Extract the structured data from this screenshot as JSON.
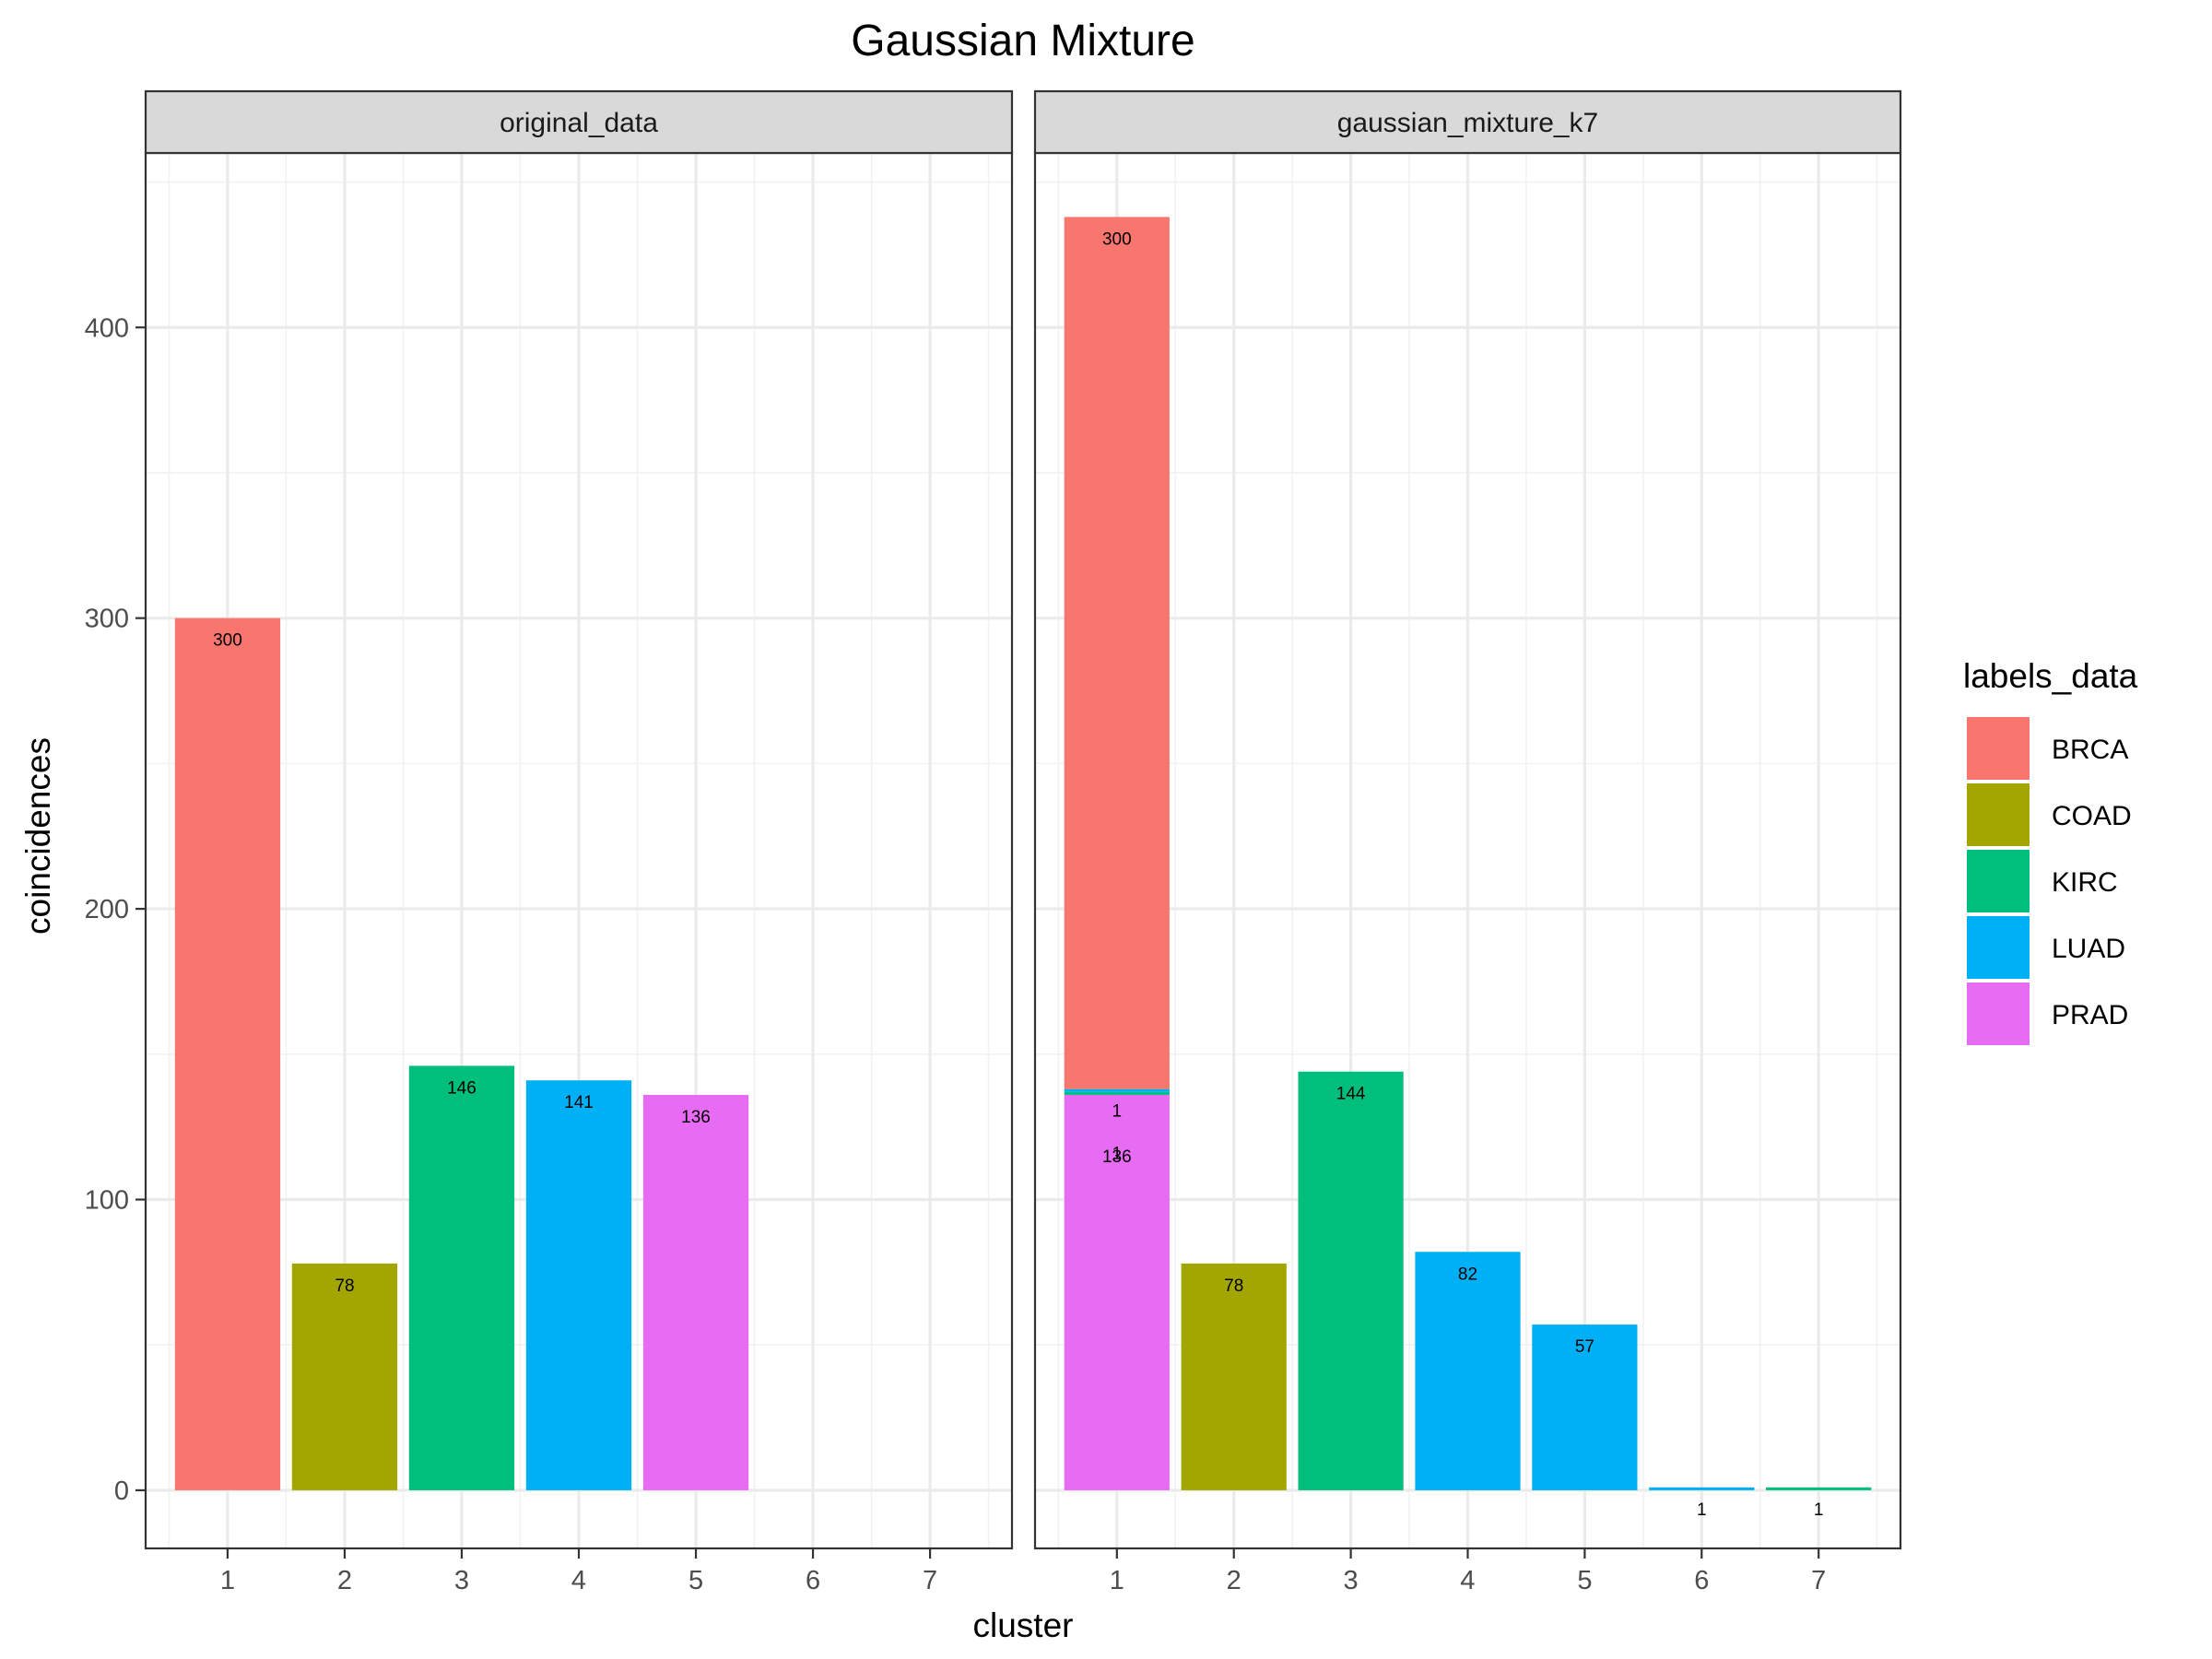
{
  "chart_data": {
    "type": "bar",
    "stacked": true,
    "title": "Gaussian Mixture",
    "xlabel": "cluster",
    "ylabel": "coincidences",
    "categories": [
      "1",
      "2",
      "3",
      "4",
      "5",
      "6",
      "7"
    ],
    "ylim": [
      -20,
      460
    ],
    "yticks": [
      0,
      100,
      200,
      300,
      400
    ],
    "grid": true,
    "legend": {
      "title": "labels_data",
      "position": "right",
      "items": [
        {
          "name": "BRCA",
          "color": "#F8766D"
        },
        {
          "name": "COAD",
          "color": "#A3A500"
        },
        {
          "name": "KIRC",
          "color": "#00BF7D"
        },
        {
          "name": "LUAD",
          "color": "#00B0F6"
        },
        {
          "name": "PRAD",
          "color": "#E76BF3"
        }
      ]
    },
    "panels": [
      {
        "name": "original_data",
        "segments": [
          {
            "cluster": "1",
            "label": "BRCA",
            "value": 300,
            "text": "300"
          },
          {
            "cluster": "2",
            "label": "COAD",
            "value": 78,
            "text": "78"
          },
          {
            "cluster": "3",
            "label": "KIRC",
            "value": 146,
            "text": "146"
          },
          {
            "cluster": "4",
            "label": "LUAD",
            "value": 141,
            "text": "141"
          },
          {
            "cluster": "5",
            "label": "PRAD",
            "value": 136,
            "text": "136"
          }
        ]
      },
      {
        "name": "gaussian_mixture_k7",
        "segments": [
          {
            "cluster": "1",
            "label": "PRAD",
            "value": 136,
            "text": "136"
          },
          {
            "cluster": "1",
            "label": "KIRC",
            "value": 1,
            "text": "1"
          },
          {
            "cluster": "1",
            "label": "LUAD",
            "value": 1,
            "text": "1"
          },
          {
            "cluster": "1",
            "label": "BRCA",
            "value": 300,
            "text": "300"
          },
          {
            "cluster": "2",
            "label": "COAD",
            "value": 78,
            "text": "78"
          },
          {
            "cluster": "3",
            "label": "KIRC",
            "value": 144,
            "text": "144"
          },
          {
            "cluster": "4",
            "label": "LUAD",
            "value": 82,
            "text": "82"
          },
          {
            "cluster": "5",
            "label": "LUAD",
            "value": 57,
            "text": "57"
          },
          {
            "cluster": "6",
            "label": "LUAD",
            "value": 1,
            "text": "1"
          },
          {
            "cluster": "7",
            "label": "KIRC",
            "value": 1,
            "text": "1"
          }
        ]
      }
    ]
  }
}
